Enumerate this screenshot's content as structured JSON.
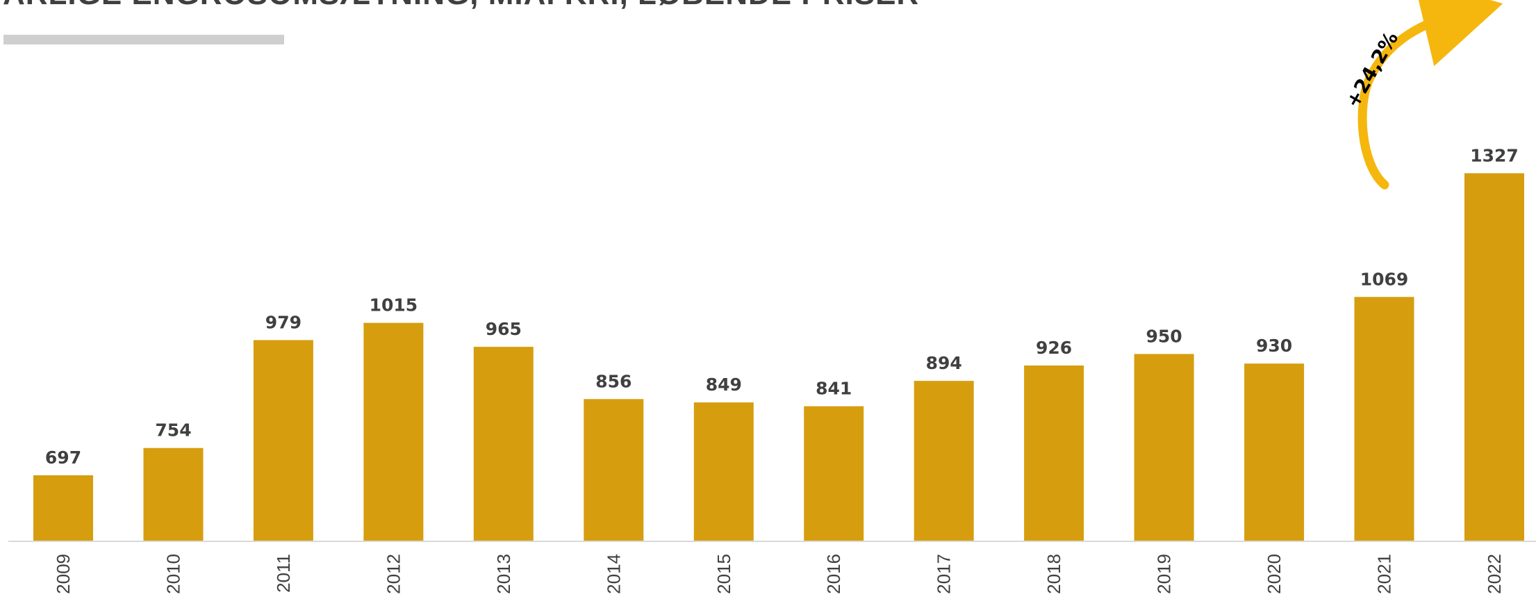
{
  "chart_data": {
    "type": "bar",
    "title": "ÅRLIGE ENGROSOMSÆTNING, MIA. KR., LØBENDE PRISER",
    "xlabel": "",
    "ylabel": "",
    "categories": [
      "2009",
      "2010",
      "2011",
      "2012",
      "2013",
      "2014",
      "2015",
      "2016",
      "2017",
      "2018",
      "2019",
      "2020",
      "2021",
      "2022"
    ],
    "values": [
      697,
      754,
      979,
      1015,
      965,
      856,
      849,
      841,
      894,
      926,
      950,
      930,
      1069,
      1327
    ],
    "data_labels": [
      "697",
      "754",
      "979",
      "1015",
      "965",
      "856",
      "849",
      "841",
      "894",
      "926",
      "950",
      "930",
      "1069",
      "1327"
    ],
    "ylim": [
      600,
      1350
    ],
    "grid": false,
    "legend": "none",
    "bar_color": "#d69e0e",
    "annotation": {
      "text": "+24,2%",
      "from": "2021",
      "to": "2022",
      "arrow_color": "#f5b70e"
    }
  }
}
